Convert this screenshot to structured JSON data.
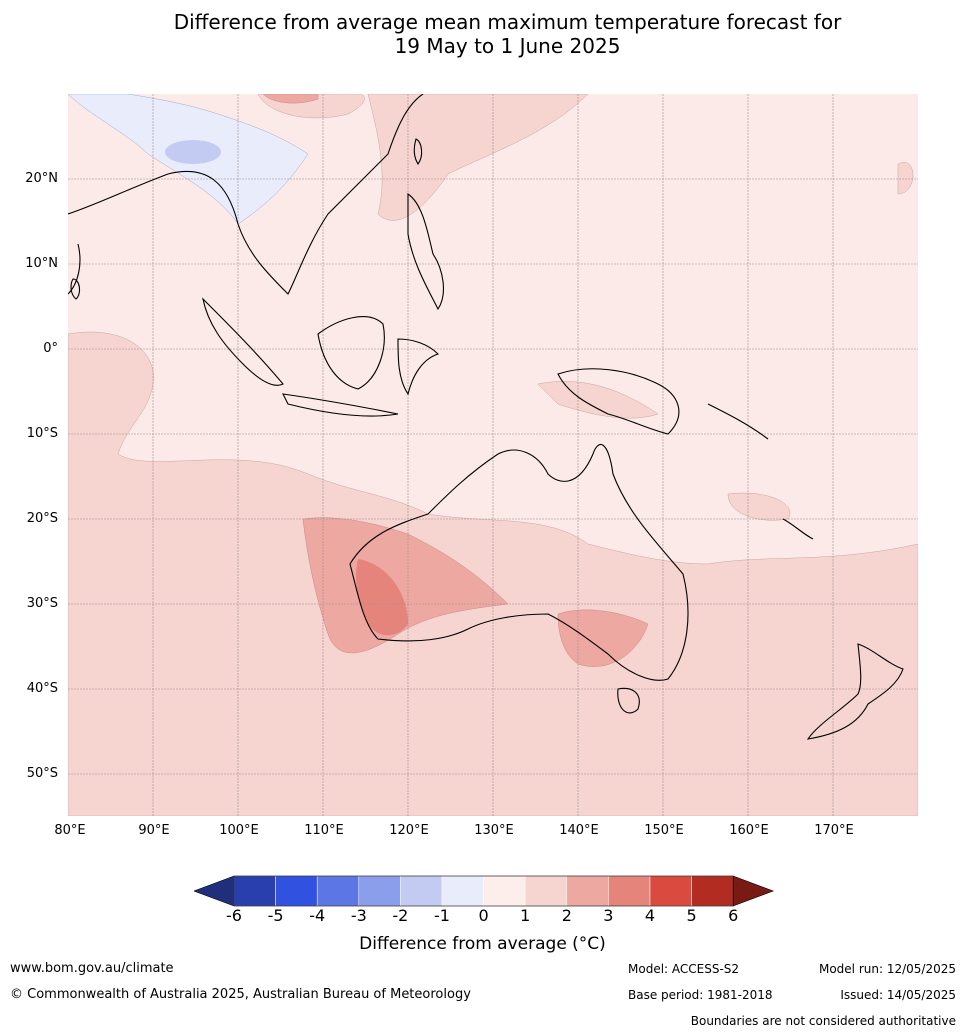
{
  "title_line1": "Difference from average mean maximum temperature forecast for",
  "title_line2": "19 May to 1 June 2025",
  "map": {
    "lat_labels": [
      "20°N",
      "10°N",
      "0°",
      "10°S",
      "20°S",
      "30°S",
      "40°S",
      "50°S"
    ],
    "lon_labels": [
      "80°E",
      "90°E",
      "100°E",
      "110°E",
      "120°E",
      "130°E",
      "140°E",
      "150°E",
      "160°E",
      "170°E"
    ]
  },
  "colorbar": {
    "ticks": [
      "-6",
      "-5",
      "-4",
      "-3",
      "-2",
      "-1",
      "0",
      "1",
      "2",
      "3",
      "4",
      "5",
      "6"
    ],
    "colors": [
      "#1f2f7e",
      "#2a3fae",
      "#3152e0",
      "#5d76e5",
      "#8b9eec",
      "#c3cbf3",
      "#e9ecfb",
      "#fdeeec",
      "#f6d4d0",
      "#eda8a2",
      "#e5847b",
      "#da4a3e",
      "#b22c22",
      "#7a1a14"
    ],
    "label": "Difference from average (°C)"
  },
  "footer": {
    "website": "www.bom.gov.au/climate",
    "copyright": "© Commonwealth of Australia 2025, Australian Bureau of Meteorology",
    "model": "Model: ACCESS-S2",
    "base_period": "Base period: 1981-2018",
    "model_run": "Model run: 12/05/2025",
    "issued": "Issued: 14/05/2025",
    "disclaimer": "Boundaries are not considered authoritative"
  }
}
